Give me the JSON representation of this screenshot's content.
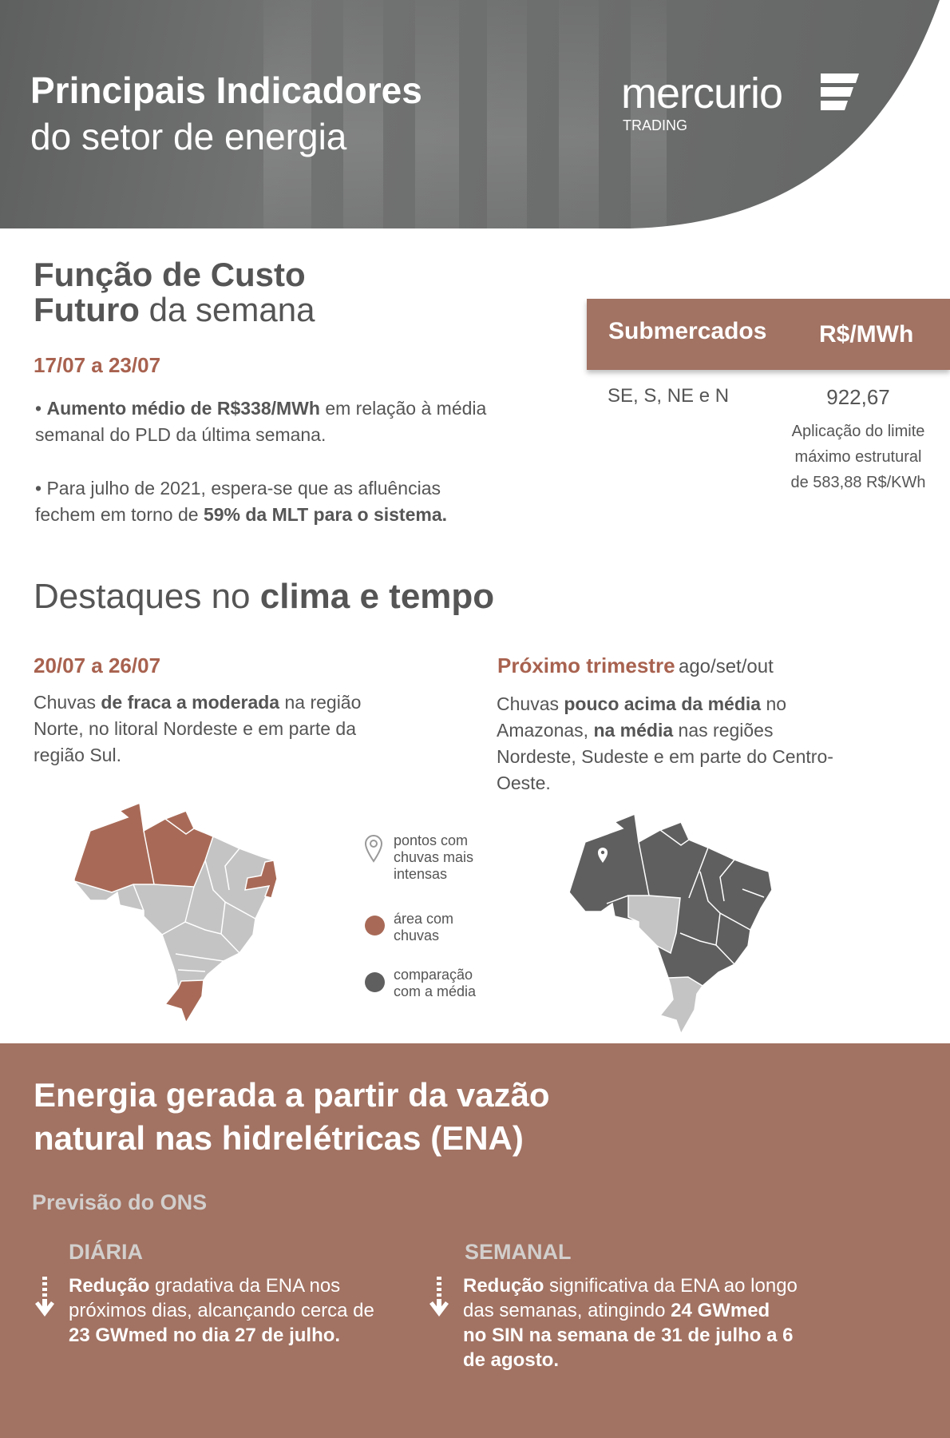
{
  "header": {
    "title_bold": "Principais Indicadores",
    "title_regular": "do setor de energia",
    "logo": "mercurio",
    "logo_sub": "TRADING"
  },
  "fcf": {
    "title_line1": "Função de Custo",
    "title_line2_bold": "Futuro",
    "title_line2_rest": " da semana",
    "period": "17/07 a 23/07",
    "bullet1": [
      {
        "t": "• "
      },
      {
        "t": "Aumento médio de R$338/MWh",
        "b": true
      },
      {
        "t": " em relação à média semanal do PLD da última semana."
      }
    ],
    "bullet2": [
      {
        "t": "• Para julho de 2021, espera-se que as afluências fechem em torno de "
      },
      {
        "t": "59% da MLT para o sistema.",
        "b": true
      }
    ]
  },
  "table": {
    "headers": [
      "Submercados",
      "R$/MWh"
    ],
    "row": {
      "submercado": "SE, S, NE e N",
      "valor": "922,67"
    },
    "note": "Aplicação do limite máximo estrutural de 583,88 R$/KWh"
  },
  "clima": {
    "title_regular": "Destaques no ",
    "title_bold": "clima e tempo",
    "left": {
      "period": "20/07 a 26/07",
      "text": [
        {
          "t": "Chuvas "
        },
        {
          "t": "de fraca a moderada",
          "b": true
        },
        {
          "t": " na região Norte, no litoral Nordeste e em parte da região Sul."
        }
      ]
    },
    "right": {
      "period": "Próximo trimestre",
      "period_sub": "ago/set/out",
      "text": [
        {
          "t": "Chuvas "
        },
        {
          "t": "pouco acima da média",
          "b": true
        },
        {
          "t": " no Amazonas, "
        },
        {
          "t": "na média",
          "b": true
        },
        {
          "t": " nas regiões Nordeste, Sudeste e em parte do Centro-Oeste."
        }
      ]
    },
    "legend": [
      {
        "icon": "map-pin-icon",
        "label": "pontos com chuvas mais intensas"
      },
      {
        "icon": "rust-circle-icon",
        "label": "área com chuvas",
        "color": "#a86a57"
      },
      {
        "icon": "dark-circle-icon",
        "label": "comparação com a média",
        "color": "#5f5f5f"
      }
    ],
    "colors": {
      "rain": "#a86a57",
      "base": "#c4c4c4",
      "comparison": "#5f5f5f"
    }
  },
  "ena": {
    "title_line1": "Energia gerada a partir da vazão",
    "title_line2": "natural nas hidrelétricas (ENA)",
    "subtitle": "Previsão do ONS",
    "diaria": {
      "label": "DIÁRIA",
      "text": [
        {
          "t": "Redução",
          "b": true
        },
        {
          "t": " gradativa da ENA nos próximos dias, alcançando cerca de "
        },
        {
          "t": "23 GWmed no dia 27 de julho.",
          "b": true
        }
      ]
    },
    "semanal": {
      "label": "SEMANAL",
      "text": [
        {
          "t": "Redução",
          "b": true
        },
        {
          "t": " significativa da ENA ao longo das semanas, atingindo "
        },
        {
          "t": "24 GWmed no SIN na semana de 31 de julho a 6 de agosto.",
          "b": true
        }
      ]
    }
  },
  "colors": {
    "accent": "#a8624f",
    "brown_panel": "#a27262",
    "header_gray": "#6b6c6c"
  }
}
